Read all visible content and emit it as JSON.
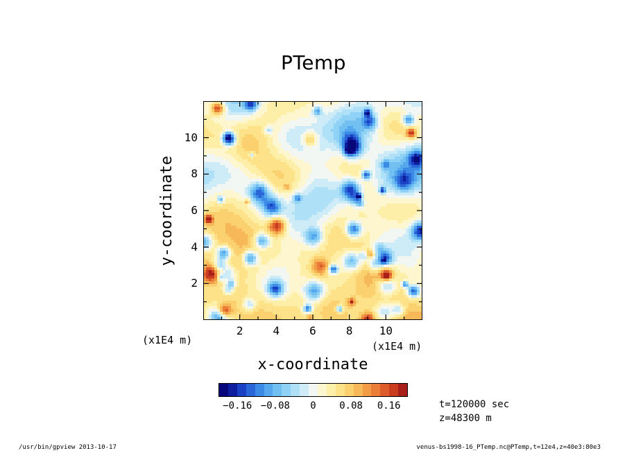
{
  "chart_data": {
    "type": "heatmap",
    "title": "PTemp",
    "xlabel": "x-coordinate",
    "ylabel": "y-coordinate",
    "x_unit": "(x1E4 m)",
    "y_unit": "(x1E4 m)",
    "xlim": [
      0,
      12
    ],
    "ylim": [
      0,
      12
    ],
    "x_ticks": [
      "2",
      "4",
      "6",
      "8",
      "10"
    ],
    "y_ticks": [
      "2",
      "4",
      "6",
      "8",
      "10"
    ],
    "colorbar": {
      "ticks": [
        {
          "value": -0.16,
          "label": "−0.16"
        },
        {
          "value": -0.08,
          "label": "−0.08"
        },
        {
          "value": 0,
          "label": "0"
        },
        {
          "value": 0.08,
          "label": "0.08"
        },
        {
          "value": 0.16,
          "label": "0.16"
        }
      ],
      "range": [
        -0.2,
        0.2
      ],
      "colors": [
        "#08087a",
        "#0d1f9e",
        "#1a40c4",
        "#2a66d8",
        "#3b8ae6",
        "#56a8ee",
        "#72c0f2",
        "#8fd2f5",
        "#aee0f7",
        "#cdecf8",
        "#f3f7f4",
        "#fdf6cf",
        "#fdefa8",
        "#fde28a",
        "#fbd06e",
        "#f7b85a",
        "#f29c48",
        "#ea7d38",
        "#dd5c2b",
        "#c93c20",
        "#a81e18"
      ]
    },
    "field_description": "turbulent potential temperature anomaly, mostly near 0 to +0.06 with scattered cold (blue) filaments"
  },
  "annotations": {
    "time": "t=120000 sec",
    "z": "z=48300 m"
  },
  "footer": {
    "left": "/usr/bin/gpview   2013-10-17",
    "right": "venus-bs1998-16_PTemp.nc@PTemp,t=12e4,z=40e3:80e3"
  }
}
